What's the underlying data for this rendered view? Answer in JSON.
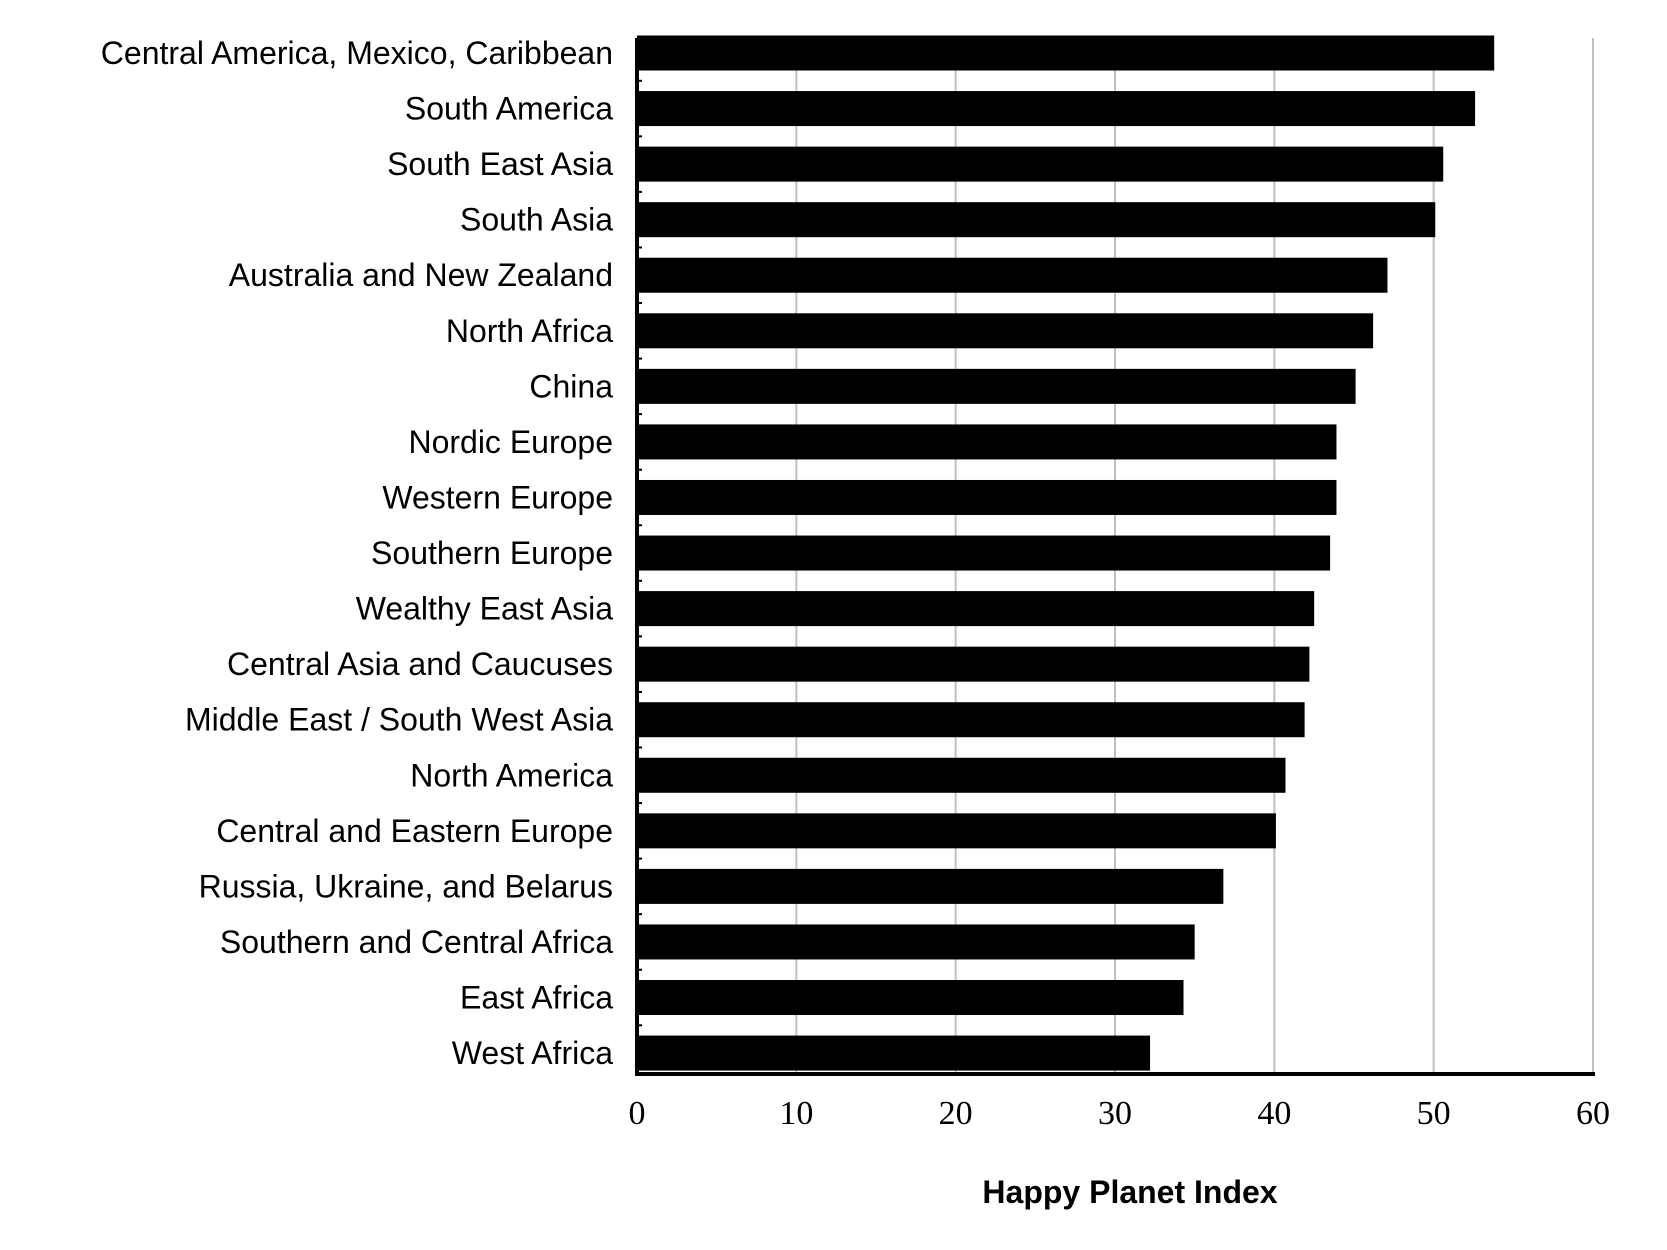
{
  "chart_data": {
    "type": "bar",
    "orientation": "horizontal",
    "categories": [
      "Central America, Mexico, Caribbean",
      "South America",
      "South East Asia",
      "South Asia",
      "Australia and New Zealand",
      "North Africa",
      "China",
      "Nordic Europe",
      "Western Europe",
      "Southern Europe",
      "Wealthy East Asia",
      "Central Asia and Caucuses",
      "Middle East  / South West Asia",
      "North America",
      "Central and Eastern Europe",
      "Russia, Ukraine, and Belarus",
      "Southern and Central Africa",
      "East Africa",
      "West Africa"
    ],
    "values": [
      53.8,
      52.6,
      50.6,
      50.1,
      47.1,
      46.2,
      45.1,
      43.9,
      43.9,
      43.5,
      42.5,
      42.2,
      41.9,
      40.7,
      40.1,
      36.8,
      35.0,
      34.3,
      32.2
    ],
    "xlabel": "Happy Planet Index",
    "ylabel": "",
    "xlim": [
      0,
      60
    ],
    "xticks": [
      "0",
      "10",
      "20",
      "30",
      "40",
      "50",
      "60"
    ],
    "grid": true,
    "legend": "none",
    "bar_color": "#000000",
    "grid_color": "#c0c0c0"
  }
}
